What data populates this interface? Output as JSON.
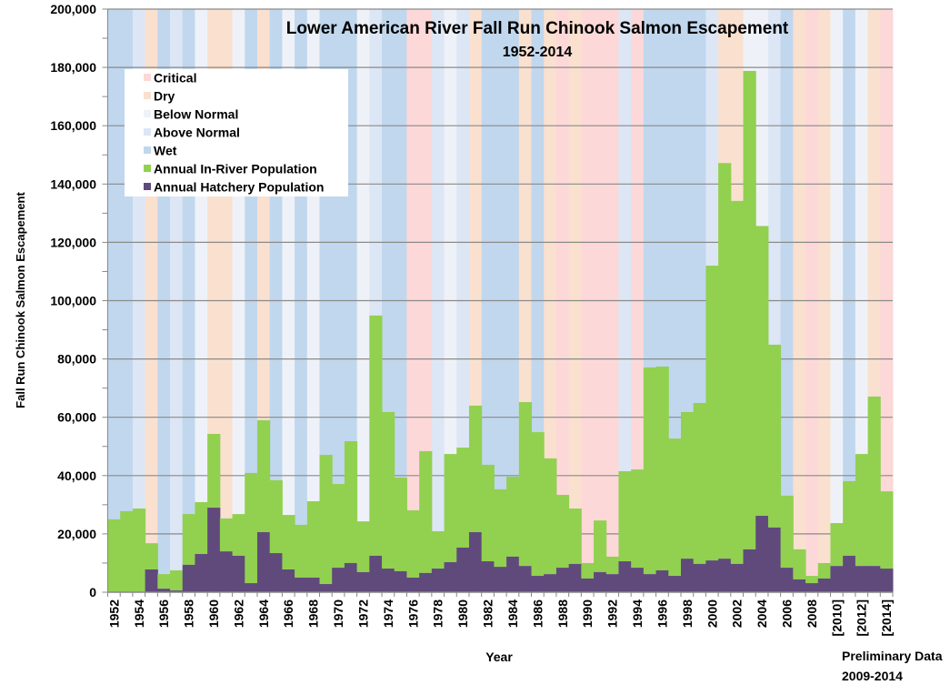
{
  "chart_data": {
    "type": "bar",
    "stacked": true,
    "title": "Lower American River Fall Run Chinook Salmon Escapement",
    "subtitle": "1952-2014",
    "xlabel": "Year",
    "ylabel": "Fall Run Chinook Salmon Escapement",
    "note_line1": "Preliminary Data",
    "note_line2": "2009-2014",
    "ylim": [
      0,
      200000
    ],
    "grid": true,
    "legend_position": "top-left",
    "y_ticks": [
      "0",
      "20,000",
      "40,000",
      "60,000",
      "80,000",
      "100,000",
      "120,000",
      "140,000",
      "160,000",
      "180,000",
      "200,000"
    ],
    "x_tick_labels": [
      "1952",
      "1954",
      "1956",
      "1958",
      "1960",
      "1962",
      "1964",
      "1966",
      "1968",
      "1970",
      "1972",
      "1974",
      "1976",
      "1978",
      "1980",
      "1982",
      "1984",
      "1986",
      "1988",
      "1990",
      "1992",
      "1994",
      "1996",
      "1998",
      "2000",
      "2002",
      "2004",
      "2006",
      "2008",
      "[2010]",
      "[2012]",
      "[2014]"
    ],
    "years": [
      1952,
      1953,
      1954,
      1955,
      1956,
      1957,
      1958,
      1959,
      1960,
      1961,
      1962,
      1963,
      1964,
      1965,
      1966,
      1967,
      1968,
      1969,
      1970,
      1971,
      1972,
      1973,
      1974,
      1975,
      1976,
      1977,
      1978,
      1979,
      1980,
      1981,
      1982,
      1983,
      1984,
      1985,
      1986,
      1987,
      1988,
      1989,
      1990,
      1991,
      1992,
      1993,
      1994,
      1995,
      1996,
      1997,
      1998,
      1999,
      2000,
      2001,
      2002,
      2003,
      2004,
      2005,
      2006,
      2007,
      2008,
      2009,
      2010,
      2011,
      2012,
      2013,
      2014
    ],
    "water_year_types": [
      "W",
      "W",
      "AN",
      "D",
      "W",
      "AN",
      "W",
      "BN",
      "D",
      "D",
      "BN",
      "W",
      "D",
      "W",
      "BN",
      "W",
      "BN",
      "W",
      "W",
      "W",
      "BN",
      "AN",
      "W",
      "W",
      "C",
      "C",
      "AN",
      "BN",
      "AN",
      "D",
      "W",
      "W",
      "W",
      "D",
      "W",
      "D",
      "C",
      "D",
      "C",
      "C",
      "C",
      "AN",
      "C",
      "W",
      "W",
      "W",
      "W",
      "W",
      "AN",
      "D",
      "D",
      "BN",
      "BN",
      "AN",
      "W",
      "D",
      "C",
      "D",
      "BN",
      "W",
      "BN",
      "D",
      "C"
    ],
    "legend": [
      {
        "key": "C",
        "label": "Critical",
        "color": "#fdd8d8"
      },
      {
        "key": "D",
        "label": "Dry",
        "color": "#fae0cf"
      },
      {
        "key": "BN",
        "label": "Below Normal",
        "color": "#eef2f8"
      },
      {
        "key": "AN",
        "label": "Above Normal",
        "color": "#dce6f5"
      },
      {
        "key": "W",
        "label": "Wet",
        "color": "#c0d7ee"
      },
      {
        "key": "inriver",
        "label": "Annual In-River Population",
        "color": "#92d050"
      },
      {
        "key": "hatchery",
        "label": "Annual Hatchery Population",
        "color": "#604a7b"
      }
    ],
    "series": [
      {
        "name": "Annual Hatchery Population",
        "color": "#604a7b",
        "values": [
          0,
          0,
          0,
          7800,
          1200,
          600,
          9400,
          13100,
          29000,
          14000,
          12500,
          3100,
          20600,
          13400,
          7800,
          5000,
          5000,
          2800,
          8400,
          10000,
          6900,
          12500,
          8100,
          7200,
          5000,
          6600,
          8100,
          10300,
          15300,
          20600,
          10600,
          8700,
          12200,
          9000,
          5600,
          6200,
          8400,
          9700,
          4700,
          6900,
          6200,
          10600,
          8400,
          6200,
          7500,
          5600,
          11500,
          9700,
          10900,
          11500,
          9700,
          14700,
          26200,
          22200,
          8400,
          4400,
          3100,
          4700,
          9000,
          12500,
          9000,
          9000,
          8100
        ]
      },
      {
        "name": "Annual In-River Population",
        "color": "#92d050",
        "values": [
          25000,
          27800,
          28700,
          9000,
          5000,
          6900,
          17400,
          17800,
          25300,
          11300,
          14300,
          37800,
          38400,
          25000,
          18700,
          18100,
          26200,
          44300,
          28700,
          41800,
          17400,
          82400,
          53700,
          32100,
          23100,
          41800,
          12800,
          37100,
          34300,
          43400,
          33100,
          26600,
          27400,
          56200,
          49300,
          39700,
          25000,
          19000,
          5300,
          17700,
          6000,
          30900,
          33700,
          70900,
          69900,
          47100,
          50300,
          55200,
          101100,
          135700,
          124500,
          164100,
          99400,
          62700,
          24700,
          10300,
          2500,
          5300,
          14700,
          25600,
          38400,
          58100,
          26500
        ]
      }
    ]
  }
}
